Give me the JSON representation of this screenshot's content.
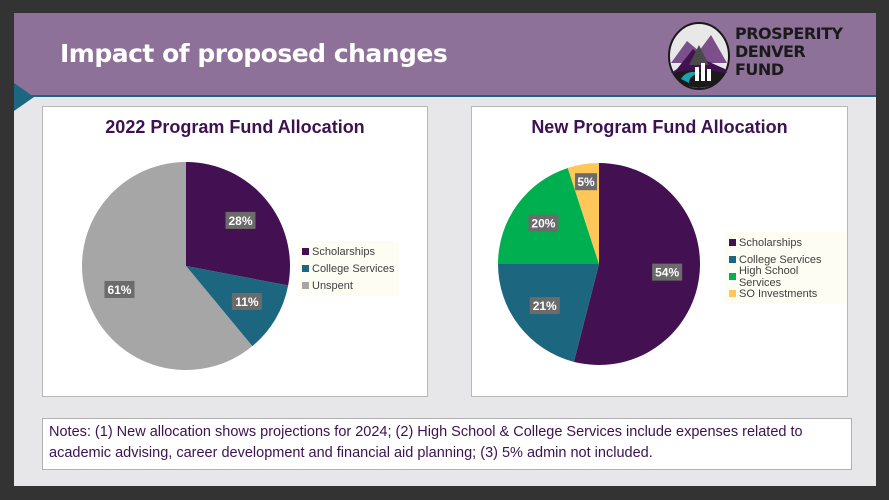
{
  "header": {
    "title": "Impact of proposed changes",
    "logo_text": [
      "PROSPERITY",
      "DENVER",
      "FUND"
    ]
  },
  "chart_data": [
    {
      "type": "pie",
      "title": "2022 Program Fund Allocation",
      "categories": [
        "Scholarships",
        "College Services",
        "Unspent"
      ],
      "values": [
        28,
        11,
        61
      ],
      "labels": [
        "28%",
        "11%",
        "61%"
      ],
      "colors": [
        "#431152",
        "#1c6680",
        "#a6a6a6"
      ],
      "legend": "right"
    },
    {
      "type": "pie",
      "title": "New Program Fund Allocation",
      "categories": [
        "Scholarships",
        "College Services",
        "High School Services",
        "SO Investments"
      ],
      "values": [
        54,
        21,
        20,
        5
      ],
      "labels": [
        "54%",
        "21%",
        "20%",
        "5%"
      ],
      "colors": [
        "#431152",
        "#1c6680",
        "#00b050",
        "#ffc759"
      ],
      "legend": "right"
    }
  ],
  "notes": {
    "text": "Notes: (1) New allocation shows projections for 2024; (2) High School & College Services include expenses related to academic advising, career development and financial aid planning; (3) 5% admin not included."
  }
}
